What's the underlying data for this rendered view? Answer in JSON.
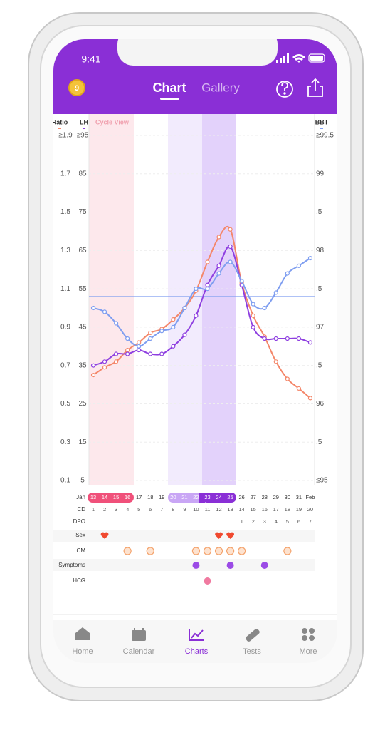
{
  "status_bar": {
    "time": "9:41"
  },
  "header": {
    "badge": "9",
    "tabs": [
      "Chart",
      "Gallery"
    ]
  },
  "chart_data": {
    "type": "line",
    "title": "Cycle View",
    "month": "Jan",
    "categories": [
      "13",
      "14",
      "15",
      "16",
      "17",
      "18",
      "19",
      "20",
      "21",
      "22",
      "23",
      "24",
      "25",
      "26",
      "27",
      "28",
      "29",
      "30",
      "31",
      "Feb"
    ],
    "series": [
      {
        "name": "Ratio",
        "color": "#f4876a",
        "axis": "y",
        "values": [
          0.65,
          0.69,
          0.72,
          0.78,
          0.82,
          0.87,
          0.89,
          0.94,
          1.0,
          1.09,
          1.24,
          1.37,
          1.41,
          1.13,
          0.96,
          0.85,
          0.72,
          0.63,
          0.58,
          0.53
        ]
      },
      {
        "name": "LH",
        "color": "#8e3fe0",
        "axis": "y2",
        "values": [
          35,
          36,
          38,
          38,
          39,
          38,
          38,
          40,
          43,
          48,
          56,
          61,
          66,
          56,
          45,
          42,
          42,
          42,
          42,
          41
        ]
      },
      {
        "name": "BBT",
        "color": "#7f9ef0",
        "axis": "y3",
        "values": [
          97.25,
          97.2,
          97.05,
          96.85,
          96.75,
          96.85,
          96.95,
          97.0,
          97.25,
          97.5,
          97.5,
          97.7,
          97.85,
          97.6,
          97.3,
          97.25,
          97.45,
          97.7,
          97.8,
          97.9
        ]
      }
    ],
    "coverline": 97.4,
    "ylim": [
      0.1,
      1.9
    ],
    "yticks": [
      0.1,
      0.3,
      0.5,
      0.7,
      0.9,
      1.1,
      1.3,
      1.5,
      1.7,
      {
        "value": 1.9,
        "label": "≥1.9"
      }
    ],
    "y2lim": [
      5,
      95
    ],
    "y2ticks": [
      5,
      15,
      25,
      35,
      45,
      55,
      65,
      75,
      85,
      {
        "value": 95,
        "label": "≥95"
      }
    ],
    "y3lim": [
      95,
      99.5
    ],
    "y3ticks": [
      {
        "value": 95,
        "label": "≤95"
      },
      {
        "value": 95.5,
        "label": ".5"
      },
      96,
      {
        "value": 96.5,
        "label": ".5"
      },
      97,
      {
        "value": 97.5,
        "label": ".5"
      },
      98,
      {
        "value": 98.5,
        "label": ".5"
      },
      99,
      {
        "value": 99.5,
        "label": "≥99.5"
      }
    ],
    "rows": [
      {
        "label": "CD",
        "values": [
          1,
          2,
          3,
          4,
          5,
          6,
          7,
          8,
          9,
          10,
          11,
          12,
          13,
          14,
          15,
          16,
          17,
          18,
          19,
          20
        ]
      },
      {
        "label": "DPO",
        "values": [
          null,
          null,
          null,
          null,
          null,
          null,
          null,
          null,
          null,
          null,
          null,
          null,
          null,
          1,
          2,
          3,
          4,
          5,
          6,
          7
        ]
      },
      {
        "label": "Sex"
      },
      {
        "label": "CM"
      },
      {
        "label": "Symptoms"
      },
      {
        "label": "HCG"
      }
    ]
  },
  "tab_bar": [
    "Home",
    "Calendar",
    "Charts",
    "Tests",
    "More"
  ]
}
